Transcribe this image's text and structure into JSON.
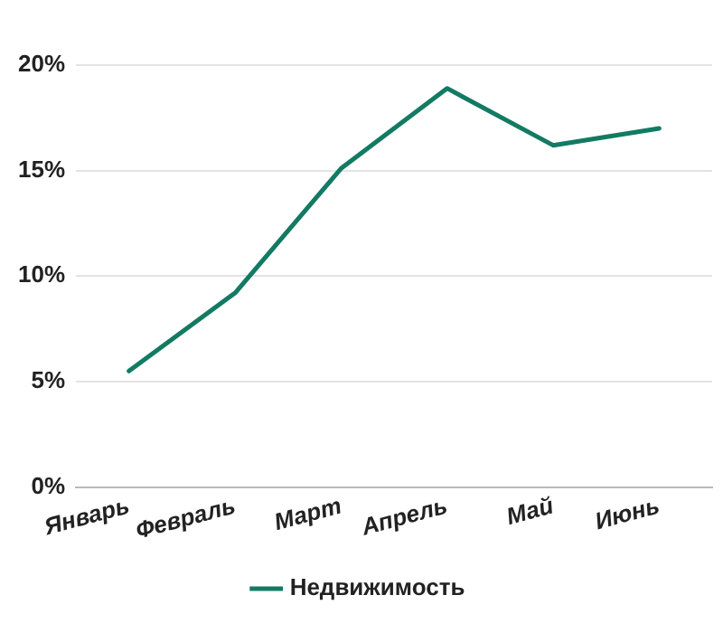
{
  "chart_data": {
    "type": "line",
    "categories": [
      "Январь",
      "Февраль",
      "Март",
      "Апрель",
      "Май",
      "Июнь"
    ],
    "series": [
      {
        "name": "Недвижимость",
        "color": "#137a63",
        "values": [
          5.5,
          9.2,
          15.1,
          18.9,
          16.2,
          17.0
        ]
      }
    ],
    "ylim": [
      0,
      20
    ],
    "yticks": [
      {
        "value": 0,
        "label": "0%"
      },
      {
        "value": 5,
        "label": "5%"
      },
      {
        "value": 10,
        "label": "10%"
      },
      {
        "value": 15,
        "label": "15%"
      },
      {
        "value": 20,
        "label": "20%"
      }
    ],
    "grid": "y",
    "legend": "bottom",
    "marker": "none",
    "line_style": "solid"
  }
}
